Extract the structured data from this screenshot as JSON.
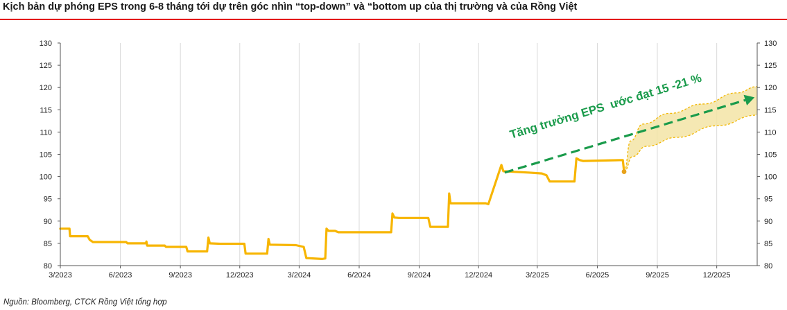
{
  "title": "Kịch bản dự phóng EPS trong 6-8 tháng tới dự trên góc nhìn “top-down” và “bottom up của thị trường và của Rồng Việt",
  "source": "Nguồn: Bloomberg, CTCK Rồng Việt tổng hợp",
  "colors": {
    "title_rule": "#e3000f",
    "eps_line": "#f7b500",
    "forecast_band": "#f3e4a6",
    "forecast_border": "#f2b600",
    "arrow": "#1a9b4b",
    "grid": "#d9d9d9"
  },
  "chart_data": {
    "type": "line",
    "title": "",
    "xlabel": "",
    "ylabel": "",
    "ylim": [
      80,
      130
    ],
    "x_tick_labels": [
      "3/2023",
      "6/2023",
      "9/2023",
      "12/2023",
      "3/2024",
      "6/2024",
      "9/2024",
      "12/2024",
      "3/2025",
      "6/2025",
      "9/2025",
      "12/2025"
    ],
    "y_ticks": [
      80,
      85,
      90,
      95,
      100,
      105,
      110,
      115,
      120,
      125,
      130
    ],
    "y_axis_both_sides": true,
    "grid": "vertical",
    "x_domain": [
      "2023-03",
      "2026-02"
    ],
    "series": [
      {
        "style": "step-line",
        "points": [
          [
            "2023-03-01",
            88.3
          ],
          [
            "2023-03-15",
            88.3
          ],
          [
            "2023-03-16",
            86.6
          ],
          [
            "2023-04-12",
            86.6
          ],
          [
            "2023-04-15",
            85.8
          ],
          [
            "2023-04-20",
            85.3
          ],
          [
            "2023-06-10",
            85.3
          ],
          [
            "2023-06-12",
            85.0
          ],
          [
            "2023-07-10",
            85.0
          ],
          [
            "2023-07-11",
            85.4
          ],
          [
            "2023-07-12",
            84.5
          ],
          [
            "2023-08-08",
            84.5
          ],
          [
            "2023-08-10",
            84.2
          ],
          [
            "2023-09-10",
            84.2
          ],
          [
            "2023-09-12",
            83.2
          ],
          [
            "2023-10-12",
            83.2
          ],
          [
            "2023-10-14",
            86.3
          ],
          [
            "2023-10-16",
            85.0
          ],
          [
            "2023-11-01",
            84.9
          ],
          [
            "2023-12-08",
            84.9
          ],
          [
            "2023-12-10",
            82.7
          ],
          [
            "2024-01-12",
            82.7
          ],
          [
            "2024-01-14",
            86.0
          ],
          [
            "2024-01-16",
            84.7
          ],
          [
            "2024-02-25",
            84.6
          ],
          [
            "2024-03-08",
            84.2
          ],
          [
            "2024-03-12",
            81.7
          ],
          [
            "2024-04-05",
            81.5
          ],
          [
            "2024-04-10",
            81.6
          ],
          [
            "2024-04-12",
            88.3
          ],
          [
            "2024-04-15",
            87.8
          ],
          [
            "2024-04-25",
            87.8
          ],
          [
            "2024-04-30",
            87.5
          ],
          [
            "2024-07-20",
            87.5
          ],
          [
            "2024-07-22",
            91.7
          ],
          [
            "2024-07-25",
            90.8
          ],
          [
            "2024-08-01",
            90.7
          ],
          [
            "2024-09-15",
            90.7
          ],
          [
            "2024-09-18",
            88.7
          ],
          [
            "2024-10-15",
            88.7
          ],
          [
            "2024-10-17",
            96.2
          ],
          [
            "2024-10-19",
            94.0
          ],
          [
            "2024-12-12",
            94.0
          ],
          [
            "2024-12-16",
            93.8
          ],
          [
            "2025-01-05",
            102.6
          ],
          [
            "2025-01-08",
            101.2
          ],
          [
            "2025-02-15",
            100.9
          ],
          [
            "2025-03-08",
            100.7
          ],
          [
            "2025-03-15",
            100.3
          ],
          [
            "2025-03-20",
            98.9
          ],
          [
            "2025-04-27",
            98.9
          ],
          [
            "2025-04-30",
            104.1
          ],
          [
            "2025-05-05",
            103.7
          ],
          [
            "2025-05-10",
            103.5
          ],
          [
            "2025-07-10",
            103.7
          ],
          [
            "2025-07-12",
            101.2
          ]
        ]
      }
    ],
    "forecast_band": {
      "start": [
        "2025-07-12",
        101.1
      ],
      "upper": [
        [
          "2025-07-12",
          101.1
        ],
        [
          "2025-07-22",
          108.0
        ],
        [
          "2025-08-10",
          111.8
        ],
        [
          "2025-09-20",
          114.2
        ],
        [
          "2025-11-10",
          116.3
        ],
        [
          "2026-01-01",
          118.8
        ],
        [
          "2026-02-01",
          120.2
        ]
      ],
      "lower": [
        [
          "2025-07-12",
          101.1
        ],
        [
          "2025-07-25",
          104.5
        ],
        [
          "2025-08-15",
          106.8
        ],
        [
          "2025-10-01",
          108.8
        ],
        [
          "2025-12-01",
          111.4
        ],
        [
          "2026-02-01",
          113.8
        ]
      ]
    },
    "arrow": {
      "from": [
        "2025-01-10",
        100.9
      ],
      "to": [
        "2026-01-28",
        117.8
      ]
    },
    "annotations": [
      {
        "text": "Tăng trưởng EPS  ước đạt 15 -21 %",
        "anchor": [
          "2025-01-20",
          108.5
        ]
      }
    ]
  }
}
